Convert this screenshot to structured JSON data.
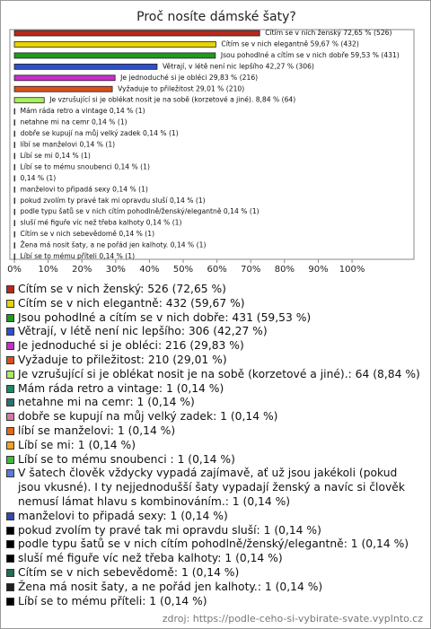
{
  "chart_data": {
    "type": "barh",
    "title": "Proč nosíte dámské šaty?",
    "categories": [
      "Cítím se v nich ženský",
      "Cítím se v nich elegantně",
      "Jsou pohodlné a cítím se v nich dobře",
      "Větrají, v létě není nic lepšího",
      "Je jednoduché si je obléci",
      "Vyžaduje to přiležitost",
      "Je vzrušující si je oblékat nosit je na sobě (korzetové a jiné).",
      "Mám ráda retro a vintage",
      "netahne mi na cemr",
      "dobře se kupují na můj velký zadek",
      "líbí se manželovi",
      "Líbí se mi",
      "Líbí se to mému snoubenci",
      null,
      "manželovi to připadá sexy",
      "pokud zvolím ty pravé tak mi opravdu sluší",
      "podle typu šatů se v nich cítím pohodlně/ženský/elegantně",
      "sluší mé figuře víc než třeba kalhoty",
      "Cítím se v nich sebevědomě",
      "Žena má nosit šaty, a ne pořád jen kalhoty.",
      "Líbí se to mému příteli"
    ],
    "values": [
      72.65,
      59.67,
      59.53,
      42.27,
      29.83,
      29.01,
      8.84,
      0.14,
      0.14,
      0.14,
      0.14,
      0.14,
      0.14,
      0.14,
      0.14,
      0.14,
      0.14,
      0.14,
      0.14,
      0.14,
      0.14
    ],
    "value_labels": [
      "72,65 % (526)",
      "59,67 % (432)",
      "59,53 % (431)",
      "42,27 % (306)",
      "29,83 % (216)",
      "29,01 % (210)",
      "8,84 % (64)",
      "0,14 % (1)",
      "0,14 % (1)",
      "0,14 % (1)",
      "0,14 % (1)",
      "0,14 % (1)",
      "0,14 % (1)",
      "0,14 % (1)",
      "0,14 % (1)",
      "0,14 % (1)",
      "0,14 % (1)",
      "0,14 % (1)",
      "0,14 % (1)",
      "0,14 % (1)",
      "0,14 % (1)"
    ],
    "colors": [
      "#b8281c",
      "#e8d400",
      "#1e9a1e",
      "#2f4fc8",
      "#c82fc8",
      "#d8501c",
      "#a8ec60",
      "#188a68",
      "#2e6e70",
      "#d07aa8",
      "#e06a18",
      "#f0a020",
      "#40b840",
      "#5a7ad8",
      "#3548b0",
      "#000000",
      "#000000",
      "#000000",
      "#1e6e50",
      "#202020",
      "#000000"
    ],
    "legend": [
      "Cítím se v nich ženský: 526 (72,65 %)",
      "Cítím se v nich elegantně: 432 (59,67 %)",
      "Jsou pohodlné a cítím se v nich dobře: 431 (59,53 %)",
      "Větrají, v létě není nic lepšího: 306 (42,27 %)",
      "Je jednoduché si je obléci: 216 (29,83 %)",
      "Vyžaduje to přiležitost: 210 (29,01 %)",
      "Je vzrušující si je oblékat nosit je na sobě (korzetové a jiné).: 64 (8,84 %)",
      "Mám ráda retro a vintage: 1 (0,14 %)",
      "netahne mi na cemr: 1 (0,14 %)",
      "dobře se kupují na můj velký zadek: 1 (0,14 %)",
      "líbí se manželovi: 1 (0,14 %)",
      "Líbí se mi: 1 (0,14 %)",
      "Líbí se to mému snoubenci : 1 (0,14 %)",
      "V šatech člověk vždycky vypadá zajímavě, ať už jsou jakékoli (pokud jsou vkusné). I ty nejjednodušší šaty vypadají ženský a navíc si člověk nemusí lámat hlavu s kombinováním.: 1 (0,14 %)",
      "manželovi to připadá sexy: 1 (0,14 %)",
      "pokud zvolím ty pravé tak mi opravdu sluší: 1 (0,14 %)",
      "podle typu šatů se v nich cítím pohodlně/ženský/elegantně: 1 (0,14 %)",
      "sluší mé figuře víc než třeba kalhoty: 1 (0,14 %)",
      "Cítím se v nich sebevědomě: 1 (0,14 %)",
      "Žena má nosit šaty, a ne pořád jen kalhoty.: 1 (0,14 %)",
      "Líbí se to mému příteli: 1 (0,14 %)"
    ],
    "xlim": [
      0,
      117
    ],
    "xticks": [
      {
        "value": 0,
        "label": "0%"
      },
      {
        "value": 10,
        "label": "10%"
      },
      {
        "value": 20,
        "label": "20%"
      },
      {
        "value": 30,
        "label": "30%"
      },
      {
        "value": 40,
        "label": "40%"
      },
      {
        "value": 50,
        "label": "50%"
      },
      {
        "value": 60,
        "label": "60%"
      },
      {
        "value": 70,
        "label": "70%"
      },
      {
        "value": 80,
        "label": "80%"
      },
      {
        "value": 90,
        "label": "90%"
      },
      {
        "value": 100,
        "label": "100%"
      }
    ],
    "source": "zdroj: https://podle-ceho-si-vybirate-svate.vyplnto.cz"
  }
}
